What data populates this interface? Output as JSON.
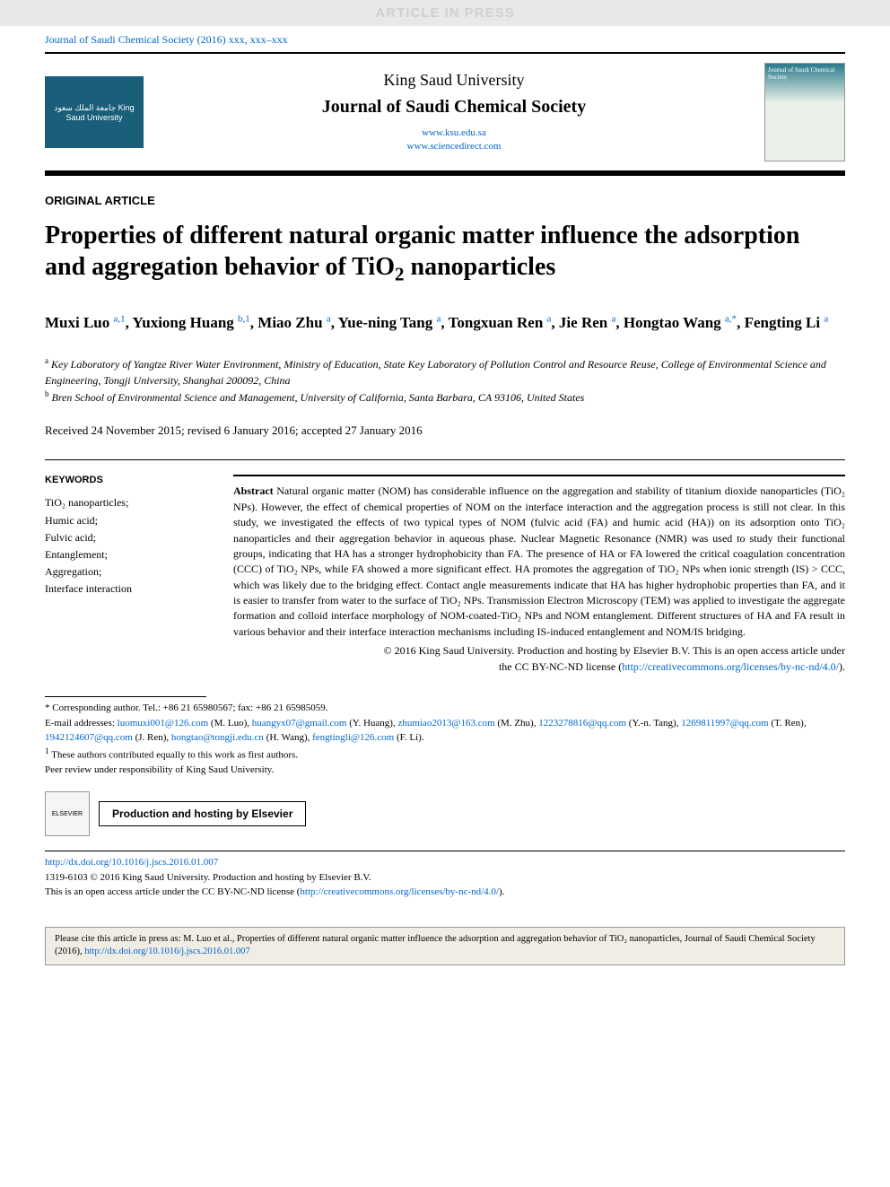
{
  "banner": "ARTICLE IN PRESS",
  "journal_ref": "Journal of Saudi Chemical Society (2016) xxx, xxx–xxx",
  "header": {
    "logo_text": "جامعة الملك سعود\nKing Saud University",
    "university": "King Saud University",
    "journal": "Journal of Saudi Chemical Society",
    "link1": "www.ksu.edu.sa",
    "link2": "www.sciencedirect.com",
    "cover_text": "Journal of Saudi Chemical Society"
  },
  "article_type": "ORIGINAL ARTICLE",
  "title_parts": {
    "p1": "Properties of different natural organic matter influence the adsorption and aggregation behavior of TiO",
    "sub": "2",
    "p2": " nanoparticles"
  },
  "authors": {
    "a1_name": "Muxi Luo ",
    "a1_sup": "a,1",
    "a2_name": ", Yuxiong Huang ",
    "a2_sup": "b,1",
    "a3_name": ", Miao Zhu ",
    "a3_sup": "a",
    "a4_name": ", Yue-ning Tang ",
    "a4_sup": "a",
    "a5_name": ", Tongxuan Ren ",
    "a5_sup": "a",
    "a6_name": ", Jie Ren ",
    "a6_sup": "a",
    "a7_name": ", Hongtao Wang ",
    "a7_sup": "a,*",
    "a8_name": ", Fengting Li ",
    "a8_sup": "a"
  },
  "affiliations": {
    "a_sup": "a",
    "a_text": " Key Laboratory of Yangtze River Water Environment, Ministry of Education, State Key Laboratory of Pollution Control and Resource Reuse, College of Environmental Science and Engineering, Tongji University, Shanghai 200092, China",
    "b_sup": "b",
    "b_text": " Bren School of Environmental Science and Management, University of California, Santa Barbara, CA 93106, United States"
  },
  "dates": "Received 24 November 2015; revised 6 January 2016; accepted 27 January 2016",
  "keywords": {
    "heading": "KEYWORDS",
    "k1": "TiO₂ nanoparticles;",
    "k2": "Humic acid;",
    "k3": "Fulvic acid;",
    "k4": "Entanglement;",
    "k5": "Aggregation;",
    "k6": "Interface interaction"
  },
  "abstract": {
    "label": "Abstract",
    "text": "   Natural organic matter (NOM) has considerable influence on the aggregation and stability of titanium dioxide nanoparticles (TiO₂ NPs). However, the effect of chemical properties of NOM on the interface interaction and the aggregation process is still not clear. In this study, we investigated the effects of two typical types of NOM (fulvic acid (FA) and humic acid (HA)) on its adsorption onto TiO₂ nanoparticles and their aggregation behavior in aqueous phase. Nuclear Magnetic Resonance (NMR) was used to study their functional groups, indicating that HA has a stronger hydrophobicity than FA. The presence of HA or FA lowered the critical coagulation concentration (CCC) of TiO₂ NPs, while FA showed a more significant effect. HA promotes the aggregation of TiO₂ NPs when ionic strength (IS) > CCC, which was likely due to the bridging effect. Contact angle measurements indicate that HA has higher hydrophobic properties than FA, and it is easier to transfer from water to the surface of TiO₂ NPs. Transmission Electron Microscopy (TEM) was applied to investigate the aggregate formation and colloid interface morphology of NOM-coated-TiO₂ NPs and NOM entanglement. Different structures of HA and FA result in various behavior and their interface interaction mechanisms including IS-induced entanglement and NOM/IS bridging."
  },
  "copyright": {
    "line1": "© 2016 King Saud University. Production and hosting by Elsevier B.V. This is an open access article under",
    "line2_pre": "the CC BY-NC-ND license (",
    "license_url": "http://creativecommons.org/licenses/by-nc-nd/4.0/",
    "line2_post": ")."
  },
  "footnotes": {
    "corr_label": "* ",
    "corr_text": "Corresponding author. Tel.: +86 21 65980567; fax: +86 21 65985059.",
    "email_label": "E-mail addresses: ",
    "e1": "luomuxi001@126.com",
    "e1_name": " (M. Luo), ",
    "e2": "huangyx07@gmail.com",
    "e2_name": " (Y. Huang), ",
    "e3": "zhumiao2013@163.com",
    "e3_name": " (M. Zhu), ",
    "e4": "1223278816@qq.com",
    "e4_name": " (Y.-n. Tang), ",
    "e5": "1269811997@qq.com",
    "e5_name": " (T. Ren), ",
    "e6": "1942124607@qq.com",
    "e6_name": " (J. Ren), ",
    "e7": "hongtao@tongji.edu.cn",
    "e7_name": " (H. Wang), ",
    "e8": "fengtingli@126.com",
    "e8_name": " (F. Li).",
    "contrib_sup": "1",
    "contrib": " These authors contributed equally to this work as first authors.",
    "peer": "Peer review under responsibility of King Saud University."
  },
  "hosting": {
    "elsevier": "ELSEVIER",
    "text": "Production and hosting by Elsevier"
  },
  "bottom": {
    "doi": "http://dx.doi.org/10.1016/j.jscs.2016.01.007",
    "issn": "1319-6103 © 2016 King Saud University. Production and hosting by Elsevier B.V.",
    "license_pre": "This is an open access article under the CC BY-NC-ND license (",
    "license_url": "http://creativecommons.org/licenses/by-nc-nd/4.0/",
    "license_post": ")."
  },
  "citation": {
    "pre": "Please cite this article in press as: M. Luo et al., Properties of different natural organic matter influence the adsorption and aggregation behavior of TiO₂ nanoparticles, Journal of Saudi Chemical Society (2016), ",
    "doi": "http://dx.doi.org/10.1016/j.jscs.2016.01.007"
  }
}
